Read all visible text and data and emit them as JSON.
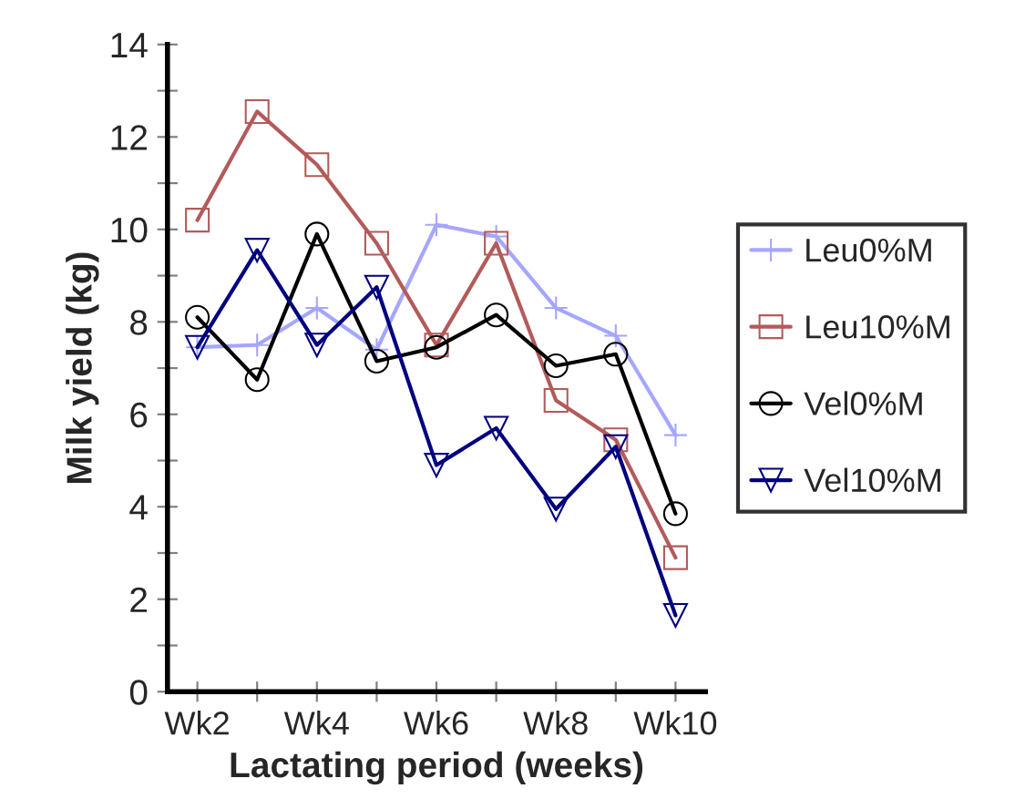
{
  "chart_data": {
    "type": "line",
    "xlabel": "Lactating period (weeks)",
    "ylabel": "Milk yield (kg)",
    "categories": [
      "Wk2",
      null,
      "Wk4",
      null,
      "Wk6",
      null,
      "Wk8",
      null,
      "Wk10"
    ],
    "ylim": [
      0,
      14
    ],
    "yticks": [
      0,
      {
        "value": 1,
        "label": null
      },
      2,
      {
        "value": 3,
        "label": null
      },
      4,
      {
        "value": 5,
        "label": null
      },
      6,
      {
        "value": 7,
        "label": null
      },
      8,
      {
        "value": 9,
        "label": null
      },
      10,
      {
        "value": 11,
        "label": null
      },
      12,
      {
        "value": 13,
        "label": null
      },
      14
    ],
    "grid": false,
    "legend": "right",
    "line_style": "solid",
    "series": [
      {
        "name": "Leu0%M",
        "color": "#a6a6ff",
        "marker": "cross",
        "values": [
          7.45,
          7.5,
          8.3,
          7.4,
          10.1,
          9.85,
          8.3,
          7.7,
          5.55
        ]
      },
      {
        "name": "Leu10%M",
        "color": "#b35a5a",
        "marker": "square",
        "values": [
          10.2,
          12.55,
          11.4,
          9.7,
          7.5,
          9.7,
          6.3,
          5.45,
          2.9
        ]
      },
      {
        "name": "Vel0%M",
        "color": "#000000",
        "marker": "circle",
        "values": [
          8.1,
          6.75,
          9.9,
          7.15,
          7.45,
          8.15,
          7.05,
          7.3,
          3.85
        ]
      },
      {
        "name": "Vel10%M",
        "color": "#00007f",
        "marker": "triangle",
        "values": [
          7.45,
          9.55,
          7.5,
          8.75,
          4.9,
          5.7,
          3.95,
          5.3,
          1.65
        ]
      }
    ]
  }
}
